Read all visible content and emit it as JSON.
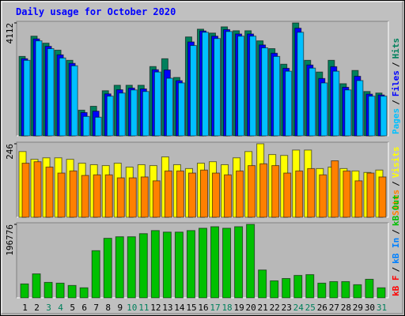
{
  "chart_data": {
    "type": "bar",
    "title": "Daily usage for October 2020",
    "legend_separator": "/",
    "categories": [
      "1",
      "2",
      "3",
      "4",
      "5",
      "6",
      "7",
      "8",
      "9",
      "10",
      "11",
      "12",
      "13",
      "14",
      "15",
      "16",
      "17",
      "18",
      "19",
      "20",
      "21",
      "22",
      "23",
      "24",
      "25",
      "26",
      "27",
      "28",
      "29",
      "30",
      "31"
    ],
    "category_colors": [
      "#000000",
      "#000000",
      "#00805c",
      "#00805c",
      "#000000",
      "#000000",
      "#000000",
      "#000000",
      "#000000",
      "#00805c",
      "#00805c",
      "#000000",
      "#000000",
      "#000000",
      "#000000",
      "#000000",
      "#00805c",
      "#00805c",
      "#000000",
      "#000000",
      "#000000",
      "#000000",
      "#000000",
      "#00805c",
      "#00805c",
      "#000000",
      "#000000",
      "#000000",
      "#000000",
      "#000000",
      "#00805c"
    ],
    "panels": [
      {
        "ylim": [
          0,
          4112
        ],
        "yticks": [
          4112
        ],
        "legend": [
          {
            "text": "Pages",
            "color": "#00c0ff"
          },
          {
            "text": "Files",
            "color": "#0000ff"
          },
          {
            "text": "Hits",
            "color": "#00805c"
          }
        ],
        "series": [
          {
            "color": "#00805c",
            "values": [
              2893,
              3630,
              3375,
              3120,
              2751,
              936,
              1078,
              1645,
              1843,
              1843,
              1843,
              2524,
              2808,
              2127,
              3602,
              3885,
              3743,
              3970,
              3828,
              3828,
              3460,
              3176,
              2609,
              4112,
              2751,
              2325,
              2751,
              1900,
              2382,
              1616,
              1560
            ]
          },
          {
            "color": "#0000ff",
            "values": [
              2810,
              3530,
              3260,
              2950,
              2640,
              850,
              900,
              1530,
              1680,
              1740,
              1710,
              2410,
              2400,
              2010,
              3420,
              3820,
              3630,
              3870,
              3710,
              3710,
              3310,
              3010,
              2460,
              3920,
              2580,
              2090,
              2520,
              1770,
              2170,
              1520,
              1490
            ]
          },
          {
            "color": "#00c0ff",
            "values": [
              2751,
              3460,
              3176,
              2836,
              2552,
              709,
              680,
              1446,
              1560,
              1673,
              1616,
              2325,
              2098,
              1928,
              3290,
              3772,
              3545,
              3800,
              3630,
              3630,
              3205,
              2893,
              2354,
              3772,
              2467,
              1928,
              2354,
              1673,
              2013,
              1446,
              1446
            ]
          }
        ]
      },
      {
        "ylim": [
          0,
          246
        ],
        "yticks": [
          246
        ],
        "legend": [
          {
            "text": "Sites",
            "color": "#ff8000"
          },
          {
            "text": "Visits",
            "color": "#ffff00"
          }
        ],
        "series": [
          {
            "color": "#ffff00",
            "values": [
              220,
              194,
              199,
              199,
              194,
              181,
              176,
              173,
              181,
              168,
              176,
              173,
              202,
              176,
              163,
              181,
              186,
              176,
              199,
              220,
              246,
              210,
              207,
              225,
              225,
              163,
              168,
              163,
              155,
              150,
              158
            ]
          },
          {
            "color": "#ff8000",
            "values": [
              181,
              186,
              168,
              148,
              155,
              140,
              142,
              142,
              132,
              132,
              135,
              122,
              155,
              155,
              148,
              158,
              148,
              142,
              155,
              173,
              179,
              173,
              148,
              155,
              163,
              142,
              189,
              155,
              122,
              148,
              135
            ]
          }
        ]
      },
      {
        "ylim": [
          0,
          196776
        ],
        "yticks": [
          196776
        ],
        "legend": [
          {
            "text": "kB F",
            "color": "#ff0000"
          },
          {
            "text": "kB In",
            "color": "#0080ff"
          },
          {
            "text": "kB Out",
            "color": "#00c000"
          }
        ],
        "series": [
          {
            "color": "#00c000",
            "values": [
              37284,
              64211,
              41426,
              39355,
              33141,
              26927,
              126350,
              159491,
              163634,
              163634,
              171920,
              180206,
              176063,
              176063,
              180206,
              186419,
              190562,
              186419,
              190562,
              196776,
              74568,
              45569,
              51783,
              60068,
              62140,
              39355,
              43498,
              43498,
              35212,
              49712,
              26927
            ]
          }
        ]
      }
    ]
  }
}
